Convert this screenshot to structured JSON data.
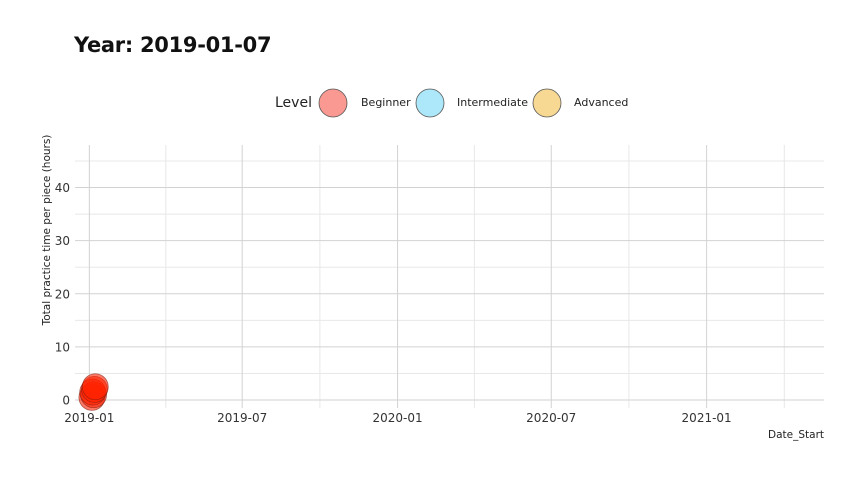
{
  "title": "Year: 2019-01-07",
  "legend": {
    "title": "Level",
    "items": [
      {
        "label": "Beginner",
        "color": "#f8766d"
      },
      {
        "label": "Intermediate",
        "color": "#7fdcf7"
      },
      {
        "label": "Advanced",
        "color": "#f5c45a"
      }
    ]
  },
  "chart_data": {
    "type": "scatter",
    "title": "Year: 2019-01-07",
    "xlabel": "Date_Start",
    "ylabel": "Total practice time per piece (hours)",
    "xlim": [
      "2018-12-15",
      "2021-05-20"
    ],
    "ylim": [
      -1.5,
      48
    ],
    "x_ticks": [
      "2019-01",
      "2019-07",
      "2020-01",
      "2020-07",
      "2021-01"
    ],
    "y_ticks": [
      0,
      10,
      20,
      30,
      40
    ],
    "grid": true,
    "legend_position": "top",
    "series": [
      {
        "name": "Beginner",
        "color": "#ff2200",
        "points": [
          {
            "x": "2019-01-04",
            "y": 0.5
          },
          {
            "x": "2019-01-06",
            "y": 1.0
          },
          {
            "x": "2019-01-05",
            "y": 1.5
          },
          {
            "x": "2019-01-07",
            "y": 2.0
          },
          {
            "x": "2019-01-08",
            "y": 2.5
          }
        ]
      }
    ]
  }
}
